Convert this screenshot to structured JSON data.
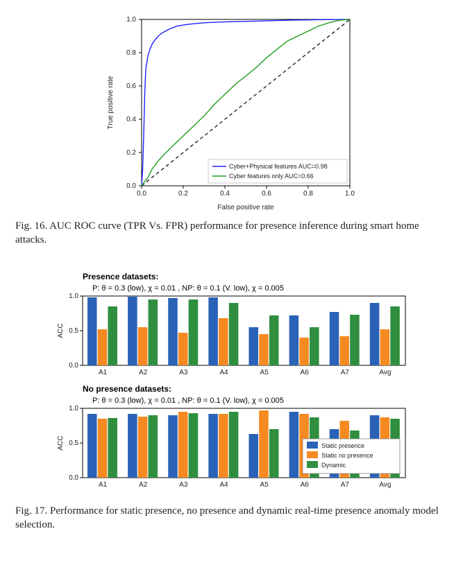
{
  "fig16": {
    "caption": "Fig. 16.   AUC ROC curve (TPR Vs. FPR) performance for presence inference during smart home attacks.",
    "chart": {
      "type": "line",
      "xlabel": "False positive rate",
      "ylabel": "True positive rate",
      "xlim": [
        0.0,
        1.0
      ],
      "ylim": [
        0.0,
        1.0
      ],
      "tick_step": 0.2,
      "background_color": "#ffffff",
      "border_color": "#000000",
      "axis_fontsize": 10,
      "label_fontsize": 10,
      "legend_fontsize": 9,
      "diagonal": {
        "color": "#000000",
        "dash": "5,4",
        "width": 1.2
      },
      "series": [
        {
          "name": "Cyber+Physical features AUC=0.98",
          "color": "#1f1fff",
          "width": 1.4,
          "points": [
            [
              0.0,
              0.0
            ],
            [
              0.005,
              0.1
            ],
            [
              0.01,
              0.3
            ],
            [
              0.015,
              0.55
            ],
            [
              0.02,
              0.7
            ],
            [
              0.03,
              0.78
            ],
            [
              0.04,
              0.82
            ],
            [
              0.05,
              0.85
            ],
            [
              0.06,
              0.87
            ],
            [
              0.08,
              0.9
            ],
            [
              0.1,
              0.92
            ],
            [
              0.13,
              0.94
            ],
            [
              0.17,
              0.96
            ],
            [
              0.22,
              0.97
            ],
            [
              0.3,
              0.98
            ],
            [
              0.4,
              0.985
            ],
            [
              0.55,
              0.99
            ],
            [
              0.7,
              0.995
            ],
            [
              0.85,
              0.998
            ],
            [
              1.0,
              1.0
            ]
          ]
        },
        {
          "name": "Cyber features only AUC=0.66",
          "color": "#1f9e1f",
          "width": 1.4,
          "points": [
            [
              0.0,
              0.0
            ],
            [
              0.03,
              0.05
            ],
            [
              0.05,
              0.1
            ],
            [
              0.08,
              0.15
            ],
            [
              0.11,
              0.19
            ],
            [
              0.15,
              0.24
            ],
            [
              0.2,
              0.3
            ],
            [
              0.25,
              0.36
            ],
            [
              0.3,
              0.42
            ],
            [
              0.35,
              0.49
            ],
            [
              0.4,
              0.55
            ],
            [
              0.45,
              0.61
            ],
            [
              0.5,
              0.66
            ],
            [
              0.55,
              0.71
            ],
            [
              0.6,
              0.77
            ],
            [
              0.65,
              0.82
            ],
            [
              0.7,
              0.87
            ],
            [
              0.75,
              0.9
            ],
            [
              0.8,
              0.93
            ],
            [
              0.85,
              0.96
            ],
            [
              0.9,
              0.98
            ],
            [
              0.95,
              0.995
            ],
            [
              1.0,
              1.0
            ]
          ]
        }
      ]
    }
  },
  "fig17": {
    "caption": "Fig. 17.   Performance for static presence, no presence and dynamic real-time presence anomaly model selection.",
    "chart": {
      "type": "grouped-bar",
      "ylabel": "ACC",
      "ylim": [
        0.0,
        1.0
      ],
      "ytick_step": 0.5,
      "categories": [
        "A1",
        "A2",
        "A3",
        "A4",
        "A5",
        "A6",
        "A7",
        "Avg"
      ],
      "bar_width": 0.24,
      "group_gap": 0.12,
      "background_color": "#ffffff",
      "border_color": "#000000",
      "legend": [
        {
          "name": "Static presence",
          "color": "#2a62b7"
        },
        {
          "name": "Static no presence",
          "color": "#f58a22"
        },
        {
          "name": "Dynamic",
          "color": "#2f8f3f"
        }
      ],
      "panels": [
        {
          "title_bold": "Presence datasets:",
          "title_params": "P: θ = 0.3 (low), χ = 0.01 , NP: θ = 0.1 (V. low), χ = 0.005",
          "title_fontsize": 12,
          "data": {
            "Static presence": [
              0.98,
              0.99,
              0.97,
              0.98,
              0.55,
              0.72,
              0.77,
              0.9
            ],
            "Static no presence": [
              0.52,
              0.55,
              0.47,
              0.68,
              0.45,
              0.4,
              0.42,
              0.52
            ],
            "Dynamic": [
              0.85,
              0.95,
              0.95,
              0.9,
              0.72,
              0.55,
              0.73,
              0.85
            ]
          }
        },
        {
          "title_bold": "No presence datasets:",
          "title_params": "P: θ = 0.3 (low), χ = 0.01 , NP: θ = 0.1 (V. low), χ = 0.005",
          "title_fontsize": 12,
          "data": {
            "Static presence": [
              0.92,
              0.92,
              0.9,
              0.92,
              0.63,
              0.95,
              0.7,
              0.9
            ],
            "Static no presence": [
              0.85,
              0.88,
              0.95,
              0.92,
              0.97,
              0.92,
              0.82,
              0.87
            ],
            "Dynamic": [
              0.86,
              0.9,
              0.93,
              0.95,
              0.7,
              0.87,
              0.68,
              0.85
            ]
          }
        }
      ]
    }
  }
}
